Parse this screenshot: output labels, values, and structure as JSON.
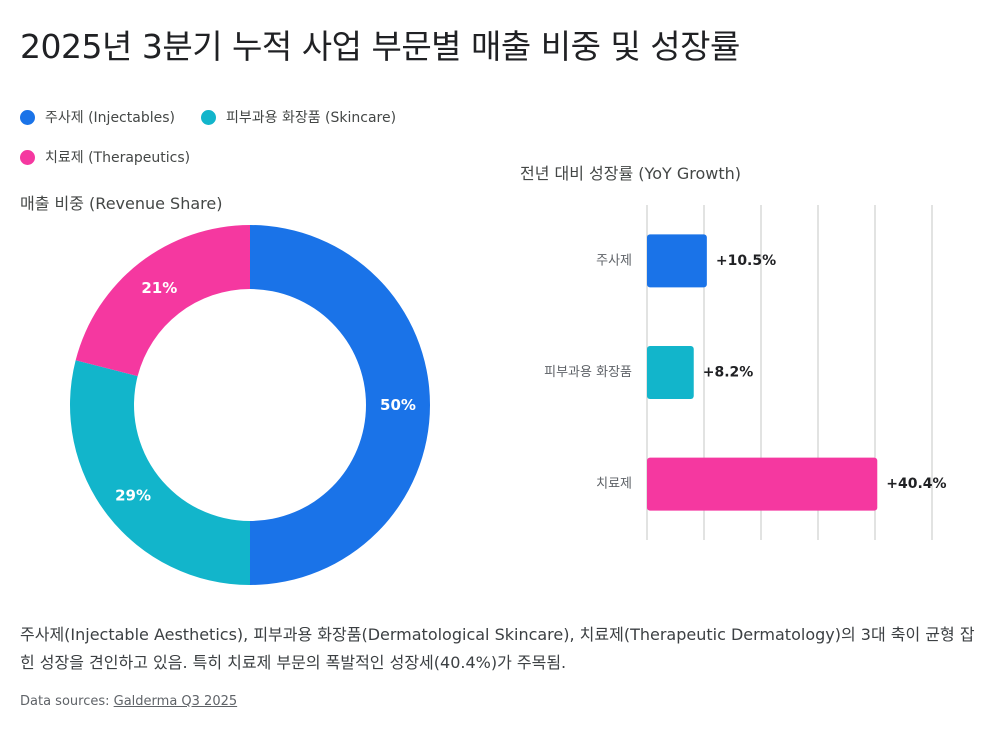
{
  "title": "2025년 3분기 누적 사업 부문별 매출 비중 및 성장률",
  "legend": [
    {
      "label": "주사제 (Injectables)",
      "color": "#1a73e8"
    },
    {
      "label": "피부과용 화장품 (Skincare)",
      "color": "#12b5cb"
    },
    {
      "label": "치료제 (Therapeutics)",
      "color": "#f538a0"
    }
  ],
  "donut_title": "매출 비중 (Revenue Share)",
  "bar_title": "전년 대비 성장률 (YoY Growth)",
  "chart_data": [
    {
      "type": "pie",
      "title": "매출 비중 (Revenue Share)",
      "donut": true,
      "categories": [
        "주사제",
        "피부과용 화장품",
        "치료제"
      ],
      "values": [
        50,
        29,
        21
      ],
      "labels": [
        "50%",
        "29%",
        "21%"
      ],
      "colors": [
        "#1a73e8",
        "#12b5cb",
        "#f538a0"
      ]
    },
    {
      "type": "bar",
      "orientation": "horizontal",
      "title": "전년 대비 성장률 (YoY Growth)",
      "categories": [
        "주사제",
        "피부과용 화장품",
        "치료제"
      ],
      "values": [
        10.5,
        8.2,
        40.4
      ],
      "labels": [
        "+10.5%",
        "+8.2%",
        "+40.4%"
      ],
      "colors": [
        "#1a73e8",
        "#12b5cb",
        "#f538a0"
      ],
      "xlim": [
        0,
        50
      ],
      "grid": true
    }
  ],
  "summary": "주사제(Injectable Aesthetics), 피부과용 화장품(Dermatological Skincare), 치료제(Therapeutic Dermatology)의 3대 축이 균형 잡힌 성장을 견인하고 있음. 특히 치료제 부문의 폭발적인 성장세(40.4%)가 주목됨.",
  "sources_prefix": "Data sources: ",
  "sources_link": "Galderma Q3 2025"
}
